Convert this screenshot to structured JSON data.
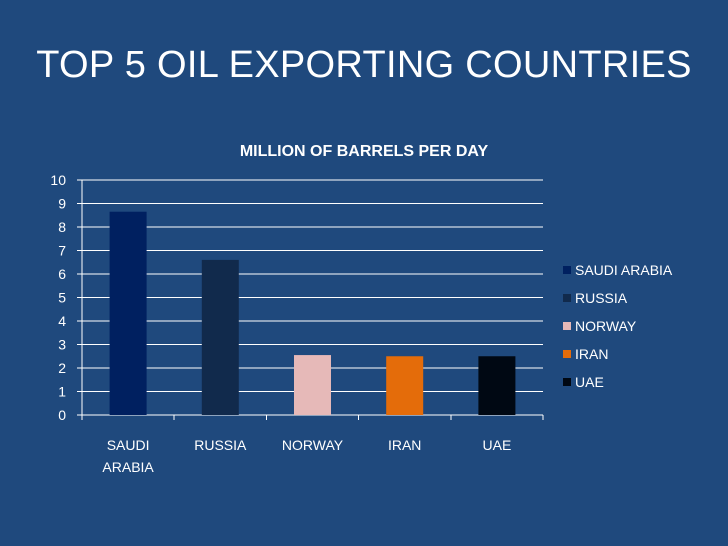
{
  "slide": {
    "title": "TOP 5 OIL EXPORTING COUNTRIES"
  },
  "chart_data": {
    "type": "bar",
    "title": "MILLION OF BARRELS PER DAY",
    "xlabel": "",
    "ylabel": "",
    "categories": [
      "SAUDI ARABIA",
      "RUSSIA",
      "NORWAY",
      "IRAN",
      "UAE"
    ],
    "category_label_lines": [
      [
        "SAUDI",
        "ARABIA"
      ],
      [
        "RUSSIA"
      ],
      [
        "NORWAY"
      ],
      [
        "IRAN"
      ],
      [
        "UAE"
      ]
    ],
    "values": [
      8.65,
      6.6,
      2.55,
      2.5,
      2.5
    ],
    "colors": [
      "#002060",
      "#112a4c",
      "#e6b9b8",
      "#e46c0a",
      "#000813"
    ],
    "ylim": [
      0,
      10
    ],
    "yticks": [
      0,
      1,
      2,
      3,
      4,
      5,
      6,
      7,
      8,
      9,
      10
    ],
    "grid": true,
    "legend_position": "right",
    "legend": [
      "SAUDI ARABIA",
      "RUSSIA",
      "NORWAY",
      "IRAN",
      "UAE"
    ]
  },
  "theme": {
    "background": "#1f497d",
    "text": "#ffffff",
    "gridline": "#ffffff"
  }
}
